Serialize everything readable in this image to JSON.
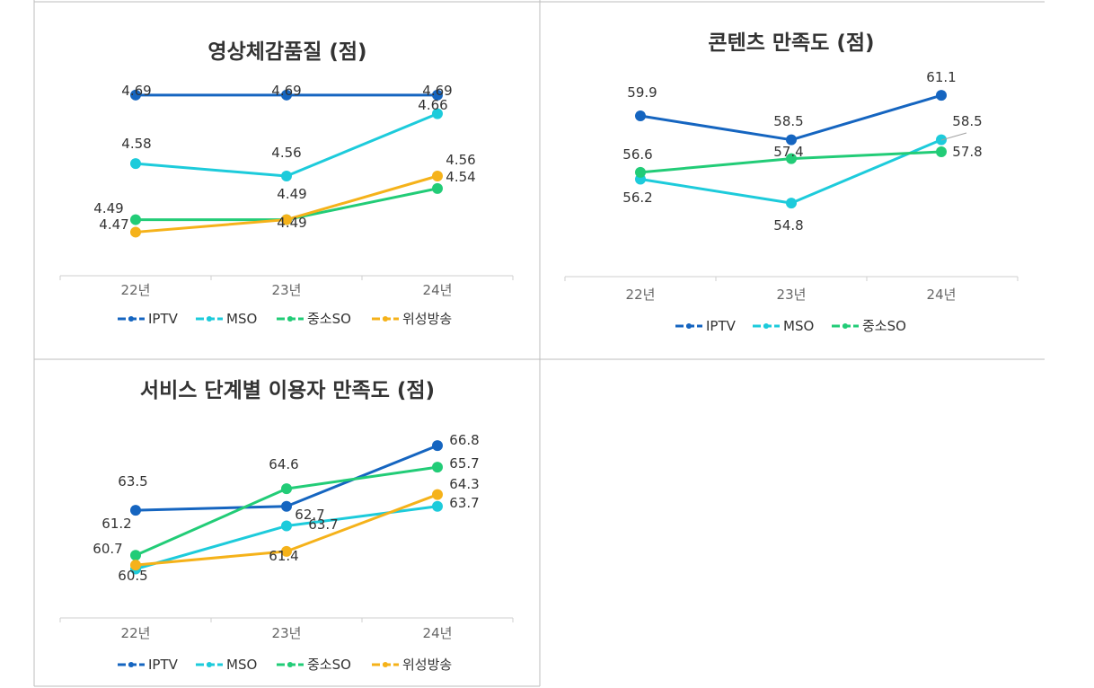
{
  "chart_data": [
    {
      "type": "line",
      "title": "영상체감품질 (점)",
      "categories": [
        "22년",
        "23년",
        "24년"
      ],
      "ylim": [
        4.4,
        4.72
      ],
      "legend_position": "bottom",
      "series": [
        {
          "name": "IPTV",
          "color": "#1565C0",
          "values": [
            4.69,
            4.69,
            4.69
          ],
          "labels": [
            "4.69",
            "4.69",
            "4.69"
          ]
        },
        {
          "name": "MSO",
          "color": "#1DCBDB",
          "values": [
            4.58,
            4.56,
            4.66
          ],
          "labels": [
            "4.58",
            "4.56",
            "4.66"
          ]
        },
        {
          "name": "중소SO",
          "color": "#22CC77",
          "values": [
            4.49,
            4.49,
            4.54
          ],
          "labels": [
            "4.49",
            "4.49",
            "4.54"
          ]
        },
        {
          "name": "위성방송",
          "color": "#F5B21A",
          "values": [
            4.47,
            4.49,
            4.56
          ],
          "labels": [
            "4.47",
            "4.49",
            "4.56"
          ]
        }
      ]
    },
    {
      "type": "line",
      "title": "콘텐츠 만족도 (점)",
      "categories": [
        "22년",
        "23년",
        "24년"
      ],
      "ylim": [
        50.5,
        63
      ],
      "legend_position": "bottom",
      "series": [
        {
          "name": "IPTV",
          "color": "#1565C0",
          "values": [
            59.9,
            58.5,
            61.1
          ],
          "labels": [
            "59.9",
            "58.5",
            "61.1"
          ]
        },
        {
          "name": "MSO",
          "color": "#1DCBDB",
          "values": [
            56.2,
            54.8,
            58.5
          ],
          "labels": [
            "56.2",
            "54.8",
            "58.5"
          ]
        },
        {
          "name": "중소SO",
          "color": "#22CC77",
          "values": [
            56.6,
            57.4,
            57.8
          ],
          "labels": [
            "56.6",
            "57.4",
            "57.8"
          ]
        }
      ]
    },
    {
      "type": "line",
      "title": "서비스 단계별 이용자 만족도 (점)",
      "categories": [
        "22년",
        "23년",
        "24년"
      ],
      "ylim": [
        58.0,
        68.0
      ],
      "legend_position": "bottom",
      "series": [
        {
          "name": "IPTV",
          "color": "#1565C0",
          "values": [
            63.5,
            63.7,
            66.8
          ],
          "labels": [
            "63.5",
            "63.7",
            "66.8"
          ]
        },
        {
          "name": "MSO",
          "color": "#1DCBDB",
          "values": [
            60.5,
            62.7,
            63.7
          ],
          "labels": [
            "60.5",
            "62.7",
            "63.7"
          ]
        },
        {
          "name": "중소SO",
          "color": "#22CC77",
          "values": [
            61.2,
            64.6,
            65.7
          ],
          "labels": [
            "61.2",
            "64.6",
            "65.7"
          ]
        },
        {
          "name": "위성방송",
          "color": "#F5B21A",
          "values": [
            60.7,
            61.4,
            64.3
          ],
          "labels": [
            "60.7",
            "61.4",
            "64.3"
          ]
        }
      ]
    }
  ]
}
